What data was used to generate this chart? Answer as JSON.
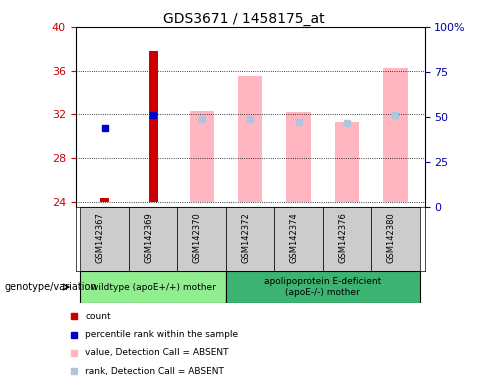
{
  "title": "GDS3671 / 1458175_at",
  "samples": [
    "GSM142367",
    "GSM142369",
    "GSM142370",
    "GSM142372",
    "GSM142374",
    "GSM142376",
    "GSM142380"
  ],
  "ylim_left": [
    23.5,
    40
  ],
  "ylim_right": [
    0,
    100
  ],
  "yticks_left": [
    24,
    28,
    32,
    36,
    40
  ],
  "yticks_right": [
    0,
    25,
    50,
    75,
    100
  ],
  "ytick_labels_right": [
    "0",
    "25",
    "50",
    "75",
    "100%"
  ],
  "baseline": 24,
  "red_bar_data": {
    "GSM142367": 24.35,
    "GSM142369": 37.8
  },
  "blue_square_data": {
    "GSM142367": 30.8,
    "GSM142369": 31.9
  },
  "pink_bar_data": {
    "GSM142370": 32.3,
    "GSM142372": 35.5,
    "GSM142374": 32.2,
    "GSM142376": 31.3,
    "GSM142380": 36.2
  },
  "lightblue_square_data": {
    "GSM142370": 31.6,
    "GSM142372": 31.6,
    "GSM142374": 31.3,
    "GSM142376": 31.2,
    "GSM142380": 31.9
  },
  "group1_label": "wildtype (apoE+/+) mother",
  "group2_label": "apolipoprotein E-deficient\n(apoE-/-) mother",
  "group_label_prefix": "genotype/variation",
  "group1_color": "#90EE90",
  "group2_color": "#3CB371",
  "red_color": "#CC0000",
  "blue_color": "#0000CC",
  "pink_color": "#FFB6C1",
  "lightblue_color": "#B0C4DE",
  "tick_color_left": "#CC0000",
  "tick_color_right": "#0000AA",
  "legend_items": [
    {
      "label": "count",
      "color": "#CC0000"
    },
    {
      "label": "percentile rank within the sample",
      "color": "#0000CC"
    },
    {
      "label": "value, Detection Call = ABSENT",
      "color": "#FFB6C1"
    },
    {
      "label": "rank, Detection Call = ABSENT",
      "color": "#B0C4DE"
    }
  ]
}
